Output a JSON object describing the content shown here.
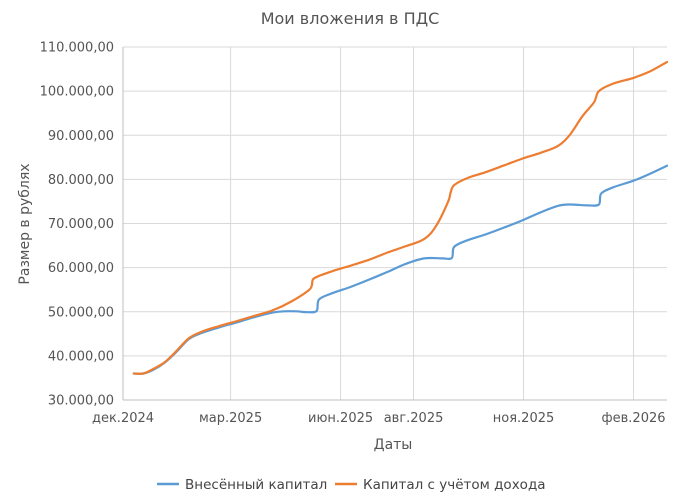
{
  "chart_data": {
    "type": "line",
    "title": "Мои вложения в ПДС",
    "xlabel": "Даты",
    "ylabel": "Размер в рублях",
    "ylim": [
      30000,
      110000
    ],
    "yticks": [
      30000,
      40000,
      50000,
      60000,
      70000,
      80000,
      90000,
      100000,
      110000
    ],
    "ytick_labels": [
      "30.000,00",
      "40.000,00",
      "50.000,00",
      "60.000,00",
      "70.000,00",
      "80.000,00",
      "90.000,00",
      "100.000,00",
      "110.000,00"
    ],
    "xlim": [
      "2024-12-01",
      "2026-03-01"
    ],
    "xticks": [
      "2024-12-01",
      "2025-03-01",
      "2025-06-01",
      "2025-08-01",
      "2025-11-01",
      "2026-02-01"
    ],
    "xtick_labels": [
      "дек.2024",
      "мар.2025",
      "июн.2025",
      "авг.2025",
      "ноя.2025",
      "фев.2026"
    ],
    "grid": true,
    "legend_position": "bottom",
    "series": [
      {
        "name": "Внесённый капитал",
        "color": "#5b9bd5",
        "points": [
          [
            "2024-12-10",
            36000
          ],
          [
            "2024-12-18",
            36000
          ],
          [
            "2024-12-26",
            36800
          ],
          [
            "2025-01-05",
            38500
          ],
          [
            "2025-01-15",
            41000
          ],
          [
            "2025-01-25",
            43800
          ],
          [
            "2025-02-05",
            45200
          ],
          [
            "2025-02-20",
            46500
          ],
          [
            "2025-03-05",
            47500
          ],
          [
            "2025-03-20",
            48700
          ],
          [
            "2025-04-05",
            49800
          ],
          [
            "2025-04-15",
            50100
          ],
          [
            "2025-04-25",
            50100
          ],
          [
            "2025-05-05",
            49900
          ],
          [
            "2025-05-12",
            50200
          ],
          [
            "2025-05-14",
            52800
          ],
          [
            "2025-05-25",
            54200
          ],
          [
            "2025-06-10",
            55700
          ],
          [
            "2025-06-25",
            57300
          ],
          [
            "2025-07-10",
            59000
          ],
          [
            "2025-07-25",
            60800
          ],
          [
            "2025-08-10",
            62100
          ],
          [
            "2025-08-25",
            62100
          ],
          [
            "2025-09-02",
            62200
          ],
          [
            "2025-09-04",
            64700
          ],
          [
            "2025-09-15",
            66200
          ],
          [
            "2025-09-30",
            67500
          ],
          [
            "2025-10-15",
            69000
          ],
          [
            "2025-10-31",
            70700
          ],
          [
            "2025-11-15",
            72500
          ],
          [
            "2025-11-30",
            74000
          ],
          [
            "2025-12-10",
            74300
          ],
          [
            "2025-12-25",
            74100
          ],
          [
            "2026-01-03",
            74300
          ],
          [
            "2026-01-05",
            76800
          ],
          [
            "2026-01-15",
            78200
          ],
          [
            "2026-02-01",
            79700
          ],
          [
            "2026-02-15",
            81300
          ],
          [
            "2026-03-01",
            83100
          ]
        ]
      },
      {
        "name": "Капитал с учётом дохода",
        "color": "#ed7d31",
        "points": [
          [
            "2024-12-10",
            36000
          ],
          [
            "2024-12-18",
            36000
          ],
          [
            "2024-12-26",
            37000
          ],
          [
            "2025-01-05",
            38600
          ],
          [
            "2025-01-15",
            41200
          ],
          [
            "2025-01-25",
            44000
          ],
          [
            "2025-02-05",
            45500
          ],
          [
            "2025-02-20",
            46800
          ],
          [
            "2025-03-05",
            47800
          ],
          [
            "2025-03-20",
            49000
          ],
          [
            "2025-04-05",
            50300
          ],
          [
            "2025-04-20",
            52200
          ],
          [
            "2025-05-05",
            54800
          ],
          [
            "2025-05-08",
            56000
          ],
          [
            "2025-05-10",
            57600
          ],
          [
            "2025-05-25",
            59200
          ],
          [
            "2025-06-10",
            60500
          ],
          [
            "2025-06-25",
            61800
          ],
          [
            "2025-07-10",
            63400
          ],
          [
            "2025-07-25",
            64800
          ],
          [
            "2025-08-10",
            66500
          ],
          [
            "2025-08-20",
            69500
          ],
          [
            "2025-08-30",
            75000
          ],
          [
            "2025-09-01",
            77000
          ],
          [
            "2025-09-04",
            78700
          ],
          [
            "2025-09-15",
            80300
          ],
          [
            "2025-09-30",
            81600
          ],
          [
            "2025-10-15",
            83100
          ],
          [
            "2025-10-31",
            84700
          ],
          [
            "2025-11-15",
            86000
          ],
          [
            "2025-11-30",
            87600
          ],
          [
            "2025-12-10",
            90200
          ],
          [
            "2025-12-20",
            94200
          ],
          [
            "2025-12-30",
            97500
          ],
          [
            "2026-01-03",
            100000
          ],
          [
            "2026-01-15",
            101700
          ],
          [
            "2026-02-01",
            103000
          ],
          [
            "2026-02-15",
            104500
          ],
          [
            "2026-03-01",
            106600
          ]
        ]
      }
    ]
  }
}
